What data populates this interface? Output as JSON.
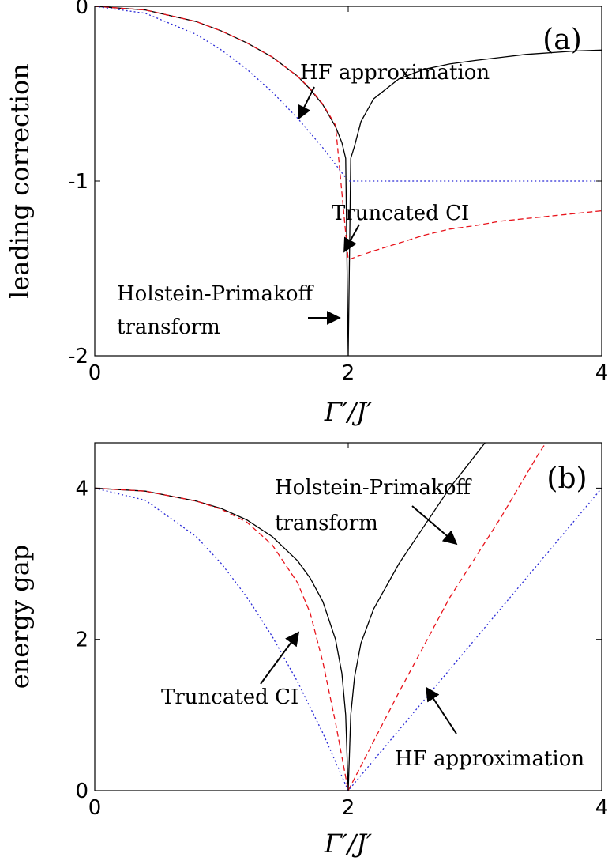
{
  "chart_data": [
    {
      "type": "line",
      "panel_label": "(a)",
      "xlabel": "Γ′/J′",
      "ylabel": "leading correction",
      "xlim": [
        0,
        4
      ],
      "ylim": [
        -2,
        0
      ],
      "xticks": [
        0,
        2,
        4
      ],
      "xtick_labels": [
        "0",
        "2",
        "4"
      ],
      "yticks": [
        0,
        -1,
        -2
      ],
      "ytick_labels": [
        "0",
        "-1",
        "-2"
      ],
      "grid": false,
      "series": [
        {
          "key": "hp",
          "color": "#000000",
          "style": "solid",
          "points": [
            [
              0,
              0
            ],
            [
              0.4,
              -0.021
            ],
            [
              0.8,
              -0.087
            ],
            [
              1.0,
              -0.141
            ],
            [
              1.2,
              -0.209
            ],
            [
              1.4,
              -0.29
            ],
            [
              1.6,
              -0.4
            ],
            [
              1.7,
              -0.474
            ],
            [
              1.8,
              -0.564
            ],
            [
              1.9,
              -0.688
            ],
            [
              1.95,
              -0.78
            ],
            [
              1.98,
              -0.87
            ],
            [
              2.0,
              -2.0
            ],
            [
              2.02,
              -0.87
            ],
            [
              2.05,
              -0.8
            ],
            [
              2.1,
              -0.66
            ],
            [
              2.2,
              -0.53
            ],
            [
              2.4,
              -0.415
            ],
            [
              2.6,
              -0.36
            ],
            [
              2.8,
              -0.33
            ],
            [
              3.0,
              -0.31
            ],
            [
              3.4,
              -0.275
            ],
            [
              3.8,
              -0.255
            ],
            [
              4.0,
              -0.25
            ]
          ]
        },
        {
          "key": "ci",
          "color": "#e8141c",
          "style": "dashed",
          "points": [
            [
              0,
              0
            ],
            [
              0.4,
              -0.021
            ],
            [
              0.8,
              -0.087
            ],
            [
              1.0,
              -0.141
            ],
            [
              1.2,
              -0.209
            ],
            [
              1.4,
              -0.29
            ],
            [
              1.6,
              -0.4
            ],
            [
              1.7,
              -0.47
            ],
            [
              1.8,
              -0.56
            ],
            [
              1.9,
              -0.68
            ],
            [
              2.0,
              -1.45
            ],
            [
              2.2,
              -1.4
            ],
            [
              2.4,
              -1.355
            ],
            [
              2.6,
              -1.31
            ],
            [
              2.8,
              -1.275
            ],
            [
              3.0,
              -1.255
            ],
            [
              3.2,
              -1.23
            ],
            [
              3.4,
              -1.215
            ],
            [
              3.6,
              -1.2
            ],
            [
              3.8,
              -1.185
            ],
            [
              4.0,
              -1.17
            ]
          ]
        },
        {
          "key": "hf",
          "color": "#2b2bd6",
          "style": "dotted",
          "points": [
            [
              0,
              0
            ],
            [
              0.4,
              -0.04
            ],
            [
              0.8,
              -0.16
            ],
            [
              1.0,
              -0.25
            ],
            [
              1.2,
              -0.36
            ],
            [
              1.4,
              -0.49
            ],
            [
              1.6,
              -0.64
            ],
            [
              1.8,
              -0.81
            ],
            [
              2.0,
              -1.0
            ],
            [
              2.4,
              -1.0
            ],
            [
              3.0,
              -1.0
            ],
            [
              4.0,
              -1.0
            ]
          ]
        }
      ],
      "annotations": [
        {
          "key": "hf",
          "lines": [
            "HF approximation"
          ]
        },
        {
          "key": "ci",
          "lines": [
            "Truncated CI"
          ]
        },
        {
          "key": "hp",
          "lines": [
            "Holstein-Primakoff",
            "transform"
          ]
        }
      ]
    },
    {
      "type": "line",
      "panel_label": "(b)",
      "xlabel": "Γ′/J′",
      "ylabel": "energy gap",
      "xlim": [
        0,
        4
      ],
      "ylim": [
        0,
        4.6
      ],
      "xticks": [
        0,
        2,
        4
      ],
      "xtick_labels": [
        "0",
        "2",
        "4"
      ],
      "yticks": [
        0,
        2,
        4
      ],
      "ytick_labels": [
        "0",
        "2",
        "4"
      ],
      "grid": false,
      "series": [
        {
          "key": "hp",
          "color": "#000000",
          "style": "solid",
          "points": [
            [
              0,
              4.0
            ],
            [
              0.4,
              3.96
            ],
            [
              0.8,
              3.83
            ],
            [
              1.0,
              3.73
            ],
            [
              1.2,
              3.58
            ],
            [
              1.4,
              3.36
            ],
            [
              1.6,
              3.04
            ],
            [
              1.7,
              2.81
            ],
            [
              1.8,
              2.5
            ],
            [
              1.9,
              2.0
            ],
            [
              1.95,
              1.55
            ],
            [
              1.98,
              1.0
            ],
            [
              2.0,
              0
            ],
            [
              2.02,
              1.0
            ],
            [
              2.05,
              1.5
            ],
            [
              2.1,
              1.95
            ],
            [
              2.2,
              2.4
            ],
            [
              2.4,
              3.0
            ],
            [
              2.6,
              3.5
            ],
            [
              2.8,
              4.0
            ],
            [
              2.94,
              4.3
            ],
            [
              3.08,
              4.6
            ]
          ]
        },
        {
          "key": "ci",
          "color": "#e8141c",
          "style": "dashed",
          "points": [
            [
              0,
              4.0
            ],
            [
              0.4,
              3.96
            ],
            [
              0.8,
              3.83
            ],
            [
              1.0,
              3.72
            ],
            [
              1.2,
              3.55
            ],
            [
              1.4,
              3.25
            ],
            [
              1.6,
              2.75
            ],
            [
              1.7,
              2.35
            ],
            [
              1.8,
              1.7
            ],
            [
              1.9,
              0.9
            ],
            [
              2.0,
              0
            ],
            [
              2.4,
              1.3
            ],
            [
              2.8,
              2.55
            ],
            [
              3.2,
              3.6
            ],
            [
              3.5,
              4.45
            ],
            [
              3.56,
              4.6
            ]
          ]
        },
        {
          "key": "hf",
          "color": "#2b2bd6",
          "style": "dotted",
          "points": [
            [
              0,
              4.0
            ],
            [
              0.4,
              3.84
            ],
            [
              0.8,
              3.36
            ],
            [
              1.0,
              3.0
            ],
            [
              1.2,
              2.56
            ],
            [
              1.4,
              2.04
            ],
            [
              1.6,
              1.44
            ],
            [
              1.8,
              0.76
            ],
            [
              2.0,
              0
            ],
            [
              2.4,
              0.8
            ],
            [
              2.8,
              1.6
            ],
            [
              3.2,
              2.4
            ],
            [
              3.6,
              3.2
            ],
            [
              4.0,
              4.0
            ]
          ]
        }
      ],
      "annotations": [
        {
          "key": "hp",
          "lines": [
            "Holstein-Primakoff",
            "transform"
          ]
        },
        {
          "key": "ci",
          "lines": [
            "Truncated CI"
          ]
        },
        {
          "key": "hf",
          "lines": [
            "HF approximation"
          ]
        }
      ]
    }
  ]
}
